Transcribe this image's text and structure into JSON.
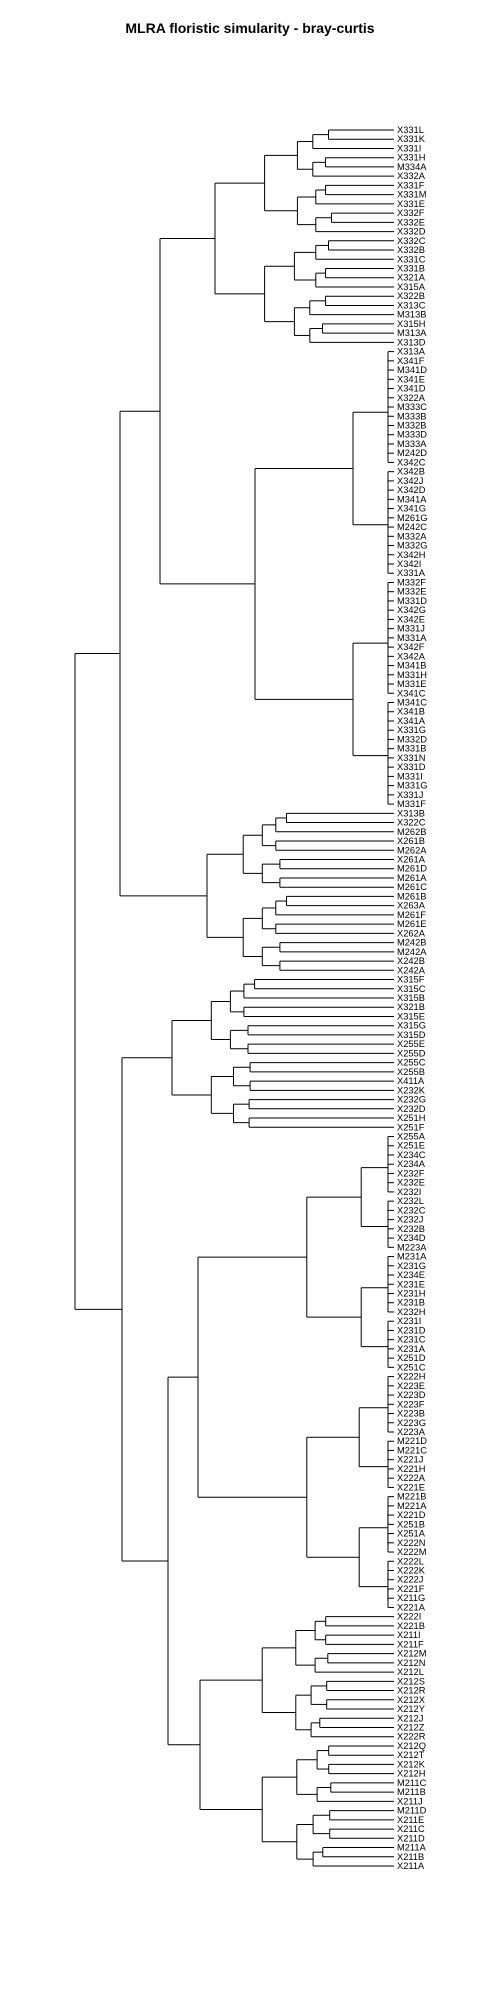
{
  "title": "MLRA floristic simularity - bray-curtis",
  "chart_data": {
    "type": "dendrogram",
    "title": "MLRA floristic simularity - bray-curtis",
    "leaves": [
      "X331L",
      "X331K",
      "X331I",
      "X331H",
      "M334A",
      "X332A",
      "X331F",
      "X331M",
      "X331E",
      "X332F",
      "X332E",
      "X332D",
      "X332C",
      "X332B",
      "X331C",
      "X331B",
      "X321A",
      "X315A",
      "X322B",
      "X313C",
      "M313B",
      "X315H",
      "M313A",
      "X313D",
      "X313A",
      "X341F",
      "M341D",
      "X341E",
      "X341D",
      "X322A",
      "M333C",
      "M333B",
      "M332B",
      "M333D",
      "M333A",
      "M242D",
      "X342C",
      "X342B",
      "X342J",
      "X342D",
      "M341A",
      "X341G",
      "M261G",
      "M242C",
      "M332A",
      "M332G",
      "X342H",
      "X342I",
      "X331A",
      "M332F",
      "M332E",
      "M331D",
      "X342G",
      "X342E",
      "M331J",
      "M331A",
      "X342F",
      "X342A",
      "M341B",
      "M331H",
      "M331E",
      "X341C",
      "M341C",
      "X341B",
      "X341A",
      "X331G",
      "M332D",
      "M331B",
      "X331N",
      "X331D",
      "M331I",
      "M331G",
      "X331J",
      "M331F",
      "X313B",
      "X322C",
      "M262B",
      "X261B",
      "M262A",
      "X261A",
      "M261D",
      "M261A",
      "M261C",
      "M261B",
      "X263A",
      "M261F",
      "M261E",
      "X262A",
      "M242B",
      "M242A",
      "X242B",
      "X242A",
      "X315F",
      "X315C",
      "X315B",
      "X321B",
      "X315E",
      "X315G",
      "X315D",
      "X255E",
      "X255D",
      "X255C",
      "X255B",
      "X411A",
      "X232K",
      "X232G",
      "X232D",
      "X251H",
      "X251F",
      "X255A",
      "X251E",
      "X234C",
      "X234A",
      "X232F",
      "X232E",
      "X232I",
      "X232L",
      "X232C",
      "X232J",
      "X232B",
      "X234D",
      "M223A",
      "M231A",
      "X231G",
      "X234E",
      "X231E",
      "X231H",
      "X231B",
      "X232H",
      "X231I",
      "X231D",
      "X231C",
      "X231A",
      "X251D",
      "X251C",
      "X222H",
      "X223E",
      "X223D",
      "X223F",
      "X223B",
      "X223G",
      "X223A",
      "M221D",
      "M221C",
      "X221J",
      "X221H",
      "X222A",
      "X221E",
      "M221B",
      "M221A",
      "X221D",
      "X251B",
      "X251A",
      "X222N",
      "X222M",
      "X222L",
      "X222K",
      "X222J",
      "X221F",
      "X211G",
      "X221A",
      "X222I",
      "X221B",
      "X211I",
      "X211F",
      "X212M",
      "X212N",
      "X212L",
      "X212S",
      "X212R",
      "X212X",
      "X212Y",
      "X212J",
      "X212Z",
      "X222R",
      "X212Q",
      "X212T",
      "X212K",
      "X212H",
      "M211C",
      "M211B",
      "X211J",
      "M211D",
      "X211E",
      "X211C",
      "X211D",
      "M211A",
      "X211B",
      "X211A"
    ]
  }
}
